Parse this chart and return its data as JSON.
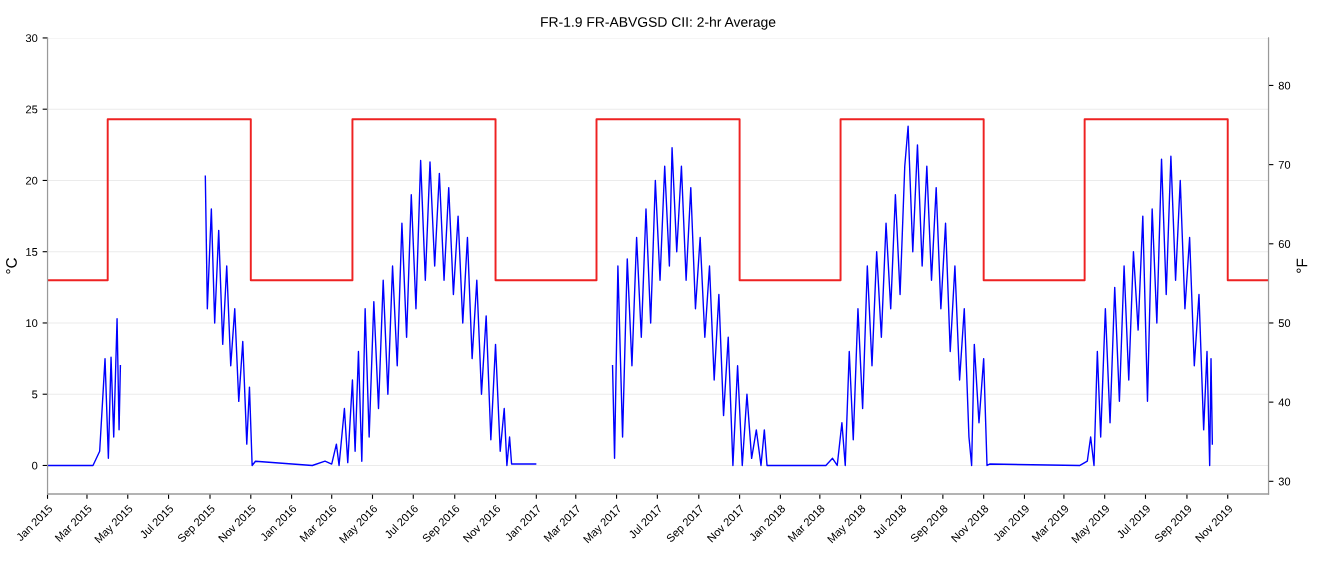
{
  "chart_data": {
    "type": "line",
    "title": "FR-1.9 FR-ABVGSD CII: 2-hr Average",
    "ylabel": "°C",
    "y2label": "°F",
    "xlim": [
      "2015-01-01",
      "2020-01-01"
    ],
    "xticks": [
      {
        "value": "2015-01",
        "label": "Jan 2015"
      },
      {
        "value": "2015-03",
        "label": "Mar 2015"
      },
      {
        "value": "2015-05",
        "label": "May 2015"
      },
      {
        "value": "2015-07",
        "label": "Jul 2015"
      },
      {
        "value": "2015-09",
        "label": "Sep 2015"
      },
      {
        "value": "2015-11",
        "label": "Nov 2015"
      },
      {
        "value": "2016-01",
        "label": "Jan 2016"
      },
      {
        "value": "2016-03",
        "label": "Mar 2016"
      },
      {
        "value": "2016-05",
        "label": "May 2016"
      },
      {
        "value": "2016-07",
        "label": "Jul 2016"
      },
      {
        "value": "2016-09",
        "label": "Sep 2016"
      },
      {
        "value": "2016-11",
        "label": "Nov 2016"
      },
      {
        "value": "2017-01",
        "label": "Jan 2017"
      },
      {
        "value": "2017-03",
        "label": "Mar 2017"
      },
      {
        "value": "2017-05",
        "label": "May 2017"
      },
      {
        "value": "2017-07",
        "label": "Jul 2017"
      },
      {
        "value": "2017-09",
        "label": "Sep 2017"
      },
      {
        "value": "2017-11",
        "label": "Nov 2017"
      },
      {
        "value": "2018-01",
        "label": "Jan 2018"
      },
      {
        "value": "2018-03",
        "label": "Mar 2018"
      },
      {
        "value": "2018-05",
        "label": "May 2018"
      },
      {
        "value": "2018-07",
        "label": "Jul 2018"
      },
      {
        "value": "2018-09",
        "label": "Sep 2018"
      },
      {
        "value": "2018-11",
        "label": "Nov 2018"
      },
      {
        "value": "2019-01",
        "label": "Jan 2019"
      },
      {
        "value": "2019-03",
        "label": "Mar 2019"
      },
      {
        "value": "2019-05",
        "label": "May 2019"
      },
      {
        "value": "2019-07",
        "label": "Jul 2019"
      },
      {
        "value": "2019-09",
        "label": "Sep 2019"
      },
      {
        "value": "2019-11",
        "label": "Nov 2019"
      }
    ],
    "ylim": [
      -2,
      30
    ],
    "yticks": [
      0,
      5,
      10,
      15,
      20,
      25,
      30
    ],
    "y2lim": [
      28.4,
      86
    ],
    "y2ticks": [
      30,
      40,
      50,
      60,
      70,
      80
    ],
    "grid": "y",
    "tick_labels": "xyy2",
    "series": [
      {
        "type": "step",
        "color": "#ee2222",
        "x": [
          "2015-01-01",
          "2015-04-01",
          "2015-11-01",
          "2016-04-01",
          "2016-11-01",
          "2017-04-01",
          "2017-11-01",
          "2018-04-01",
          "2018-11-01",
          "2019-04-01",
          "2019-11-01",
          "2020-01-01"
        ],
        "values": [
          13,
          24.3,
          13,
          24.3,
          13,
          24.3,
          13,
          24.3,
          13,
          24.3,
          13,
          13
        ]
      },
      {
        "color": "#0000ff",
        "x": [
          "2015-01-01",
          "2015-03-10",
          "2015-03-20",
          "2015-03-28",
          "2015-04-02",
          "2015-04-06",
          "2015-04-10",
          "2015-04-15",
          "2015-04-18",
          "2015-04-20",
          "2015-06-01",
          "2015-08-25",
          "2015-08-28",
          "2015-09-03",
          "2015-09-08",
          "2015-09-14",
          "2015-09-20",
          "2015-09-26",
          "2015-10-02",
          "2015-10-08",
          "2015-10-14",
          "2015-10-20",
          "2015-10-26",
          "2015-10-30",
          "2015-11-03",
          "2015-11-08",
          "2016-02-01",
          "2016-02-20",
          "2016-03-01",
          "2016-03-08",
          "2016-03-12",
          "2016-03-20",
          "2016-03-25",
          "2016-04-01",
          "2016-04-05",
          "2016-04-10",
          "2016-04-15",
          "2016-04-20",
          "2016-04-26",
          "2016-05-03",
          "2016-05-10",
          "2016-05-17",
          "2016-05-24",
          "2016-05-31",
          "2016-06-07",
          "2016-06-14",
          "2016-06-21",
          "2016-06-28",
          "2016-07-05",
          "2016-07-12",
          "2016-07-19",
          "2016-07-26",
          "2016-08-02",
          "2016-08-09",
          "2016-08-16",
          "2016-08-23",
          "2016-08-30",
          "2016-09-06",
          "2016-09-13",
          "2016-09-20",
          "2016-09-27",
          "2016-10-04",
          "2016-10-11",
          "2016-10-18",
          "2016-10-25",
          "2016-11-01",
          "2016-11-08",
          "2016-11-14",
          "2016-11-18",
          "2016-11-22",
          "2016-11-25",
          "2016-12-31",
          "2017-02-15",
          "2017-04-25",
          "2017-04-28",
          "2017-05-03",
          "2017-05-10",
          "2017-05-17",
          "2017-05-24",
          "2017-05-31",
          "2017-06-07",
          "2017-06-14",
          "2017-06-21",
          "2017-06-28",
          "2017-07-05",
          "2017-07-12",
          "2017-07-19",
          "2017-07-23",
          "2017-07-30",
          "2017-08-06",
          "2017-08-13",
          "2017-08-20",
          "2017-08-27",
          "2017-09-03",
          "2017-09-10",
          "2017-09-17",
          "2017-09-24",
          "2017-10-01",
          "2017-10-08",
          "2017-10-15",
          "2017-10-22",
          "2017-10-29",
          "2017-11-05",
          "2017-11-12",
          "2017-11-19",
          "2017-11-26",
          "2017-12-03",
          "2017-12-08",
          "2017-12-12",
          "2018-03-10",
          "2018-03-20",
          "2018-03-27",
          "2018-04-03",
          "2018-04-08",
          "2018-04-14",
          "2018-04-20",
          "2018-04-27",
          "2018-05-04",
          "2018-05-11",
          "2018-05-18",
          "2018-05-25",
          "2018-06-01",
          "2018-06-08",
          "2018-06-15",
          "2018-06-22",
          "2018-06-29",
          "2018-07-06",
          "2018-07-11",
          "2018-07-18",
          "2018-07-25",
          "2018-08-01",
          "2018-08-08",
          "2018-08-15",
          "2018-08-22",
          "2018-08-29",
          "2018-09-05",
          "2018-09-12",
          "2018-09-19",
          "2018-09-26",
          "2018-10-03",
          "2018-10-10",
          "2018-10-14",
          "2018-10-18",
          "2018-10-25",
          "2018-11-01",
          "2018-11-06",
          "2018-11-10",
          "2019-03-25",
          "2019-04-05",
          "2019-04-10",
          "2019-04-15",
          "2019-04-20",
          "2019-04-25",
          "2019-05-02",
          "2019-05-09",
          "2019-05-16",
          "2019-05-23",
          "2019-05-30",
          "2019-06-06",
          "2019-06-13",
          "2019-06-20",
          "2019-06-27",
          "2019-07-04",
          "2019-07-11",
          "2019-07-18",
          "2019-07-25",
          "2019-08-01",
          "2019-08-08",
          "2019-08-15",
          "2019-08-22",
          "2019-08-29",
          "2019-09-05",
          "2019-09-12",
          "2019-09-19",
          "2019-09-26",
          "2019-10-01",
          "2019-10-05",
          "2019-10-07",
          "2019-10-09"
        ],
        "values": [
          0,
          0,
          1,
          7.5,
          0.5,
          7.6,
          2,
          10.3,
          2.5,
          7,
          null,
          20.3,
          11,
          18,
          10,
          16.5,
          8.5,
          14,
          7,
          11,
          4.5,
          8.7,
          1.5,
          5.5,
          0,
          0.3,
          0,
          0.3,
          0.1,
          1.5,
          0,
          4,
          0.2,
          6,
          1,
          8,
          0.3,
          11,
          2,
          11.5,
          4,
          13,
          5,
          14,
          7,
          17,
          9,
          19,
          11,
          21.4,
          13,
          21.3,
          14,
          20.5,
          13,
          19.5,
          12,
          17.5,
          10,
          16,
          7.5,
          13,
          5,
          10.5,
          1.8,
          8.5,
          1,
          4,
          0,
          2,
          0.1,
          0.1,
          null,
          7,
          0.5,
          14,
          2,
          14.5,
          7,
          16,
          9,
          18,
          10,
          20,
          13,
          21,
          14,
          22.3,
          15,
          21,
          13,
          19.5,
          11,
          16,
          9,
          14,
          6,
          12,
          3.5,
          9,
          0,
          7,
          0,
          5,
          0.5,
          2.5,
          0,
          2.5,
          0,
          0,
          0.5,
          0,
          3,
          0,
          8,
          1.8,
          11,
          4,
          14,
          7,
          15,
          9,
          17,
          11,
          19,
          12,
          21,
          23.8,
          15,
          22.5,
          14,
          21,
          13,
          19.5,
          11,
          17,
          8,
          14,
          6,
          11,
          2,
          0,
          8.5,
          3,
          7.5,
          0,
          0.1,
          0,
          0.3,
          2,
          0,
          8,
          2,
          11,
          3,
          12.5,
          4.5,
          14,
          6,
          15,
          9.5,
          17.5,
          4.5,
          18,
          10,
          21.5,
          12,
          21.7,
          13,
          20,
          11,
          16,
          7,
          12,
          2.5,
          8,
          0,
          7.5,
          1.5
        ]
      }
    ]
  }
}
